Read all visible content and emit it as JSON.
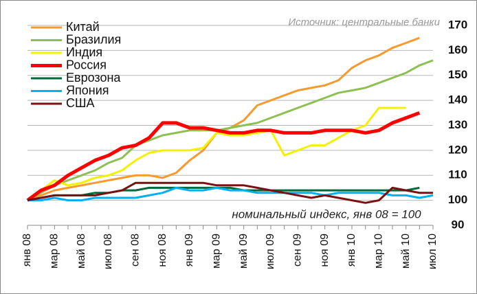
{
  "chart_data": {
    "type": "line",
    "source": "Источник: центральные банки",
    "annotation": "номинальный индекс, янв 08 = 100",
    "categories": [
      "янв 08",
      null,
      "мар 08",
      null,
      "май 08",
      null,
      "июл 08",
      null,
      "сен 08",
      null,
      "ноя 08",
      null,
      "янв 09",
      null,
      "мар 09",
      null,
      "май 09",
      null,
      "июл 09",
      null,
      "сен 09",
      null,
      "ноя 09",
      null,
      "янв 10",
      null,
      "мар 10",
      null,
      "май 10",
      null,
      "июл 10"
    ],
    "ylim": [
      90,
      170
    ],
    "yticks": [
      90,
      100,
      110,
      120,
      130,
      140,
      150,
      160,
      170
    ],
    "grid": true,
    "y_axis_side": "right",
    "legend": "upper left",
    "series": [
      {
        "name": "Китай",
        "color": "#f79a2e",
        "values": [
          100,
          102,
          104,
          105,
          106,
          107,
          108,
          109,
          110,
          110,
          109,
          111,
          116,
          120,
          127,
          129,
          132,
          138,
          140,
          142,
          144,
          145,
          146,
          148,
          153,
          156,
          158,
          161,
          163,
          165,
          null
        ]
      },
      {
        "name": "Бразилия",
        "color": "#8cc152",
        "values": [
          100,
          103,
          106,
          108,
          110,
          112,
          115,
          117,
          122,
          124,
          126,
          127,
          128,
          128,
          128,
          129,
          130,
          131,
          133,
          135,
          137,
          139,
          141,
          143,
          144,
          145,
          147,
          149,
          151,
          154,
          156
        ]
      },
      {
        "name": "Индия",
        "color": "#f2f200",
        "values": [
          100,
          104,
          108,
          106,
          107,
          109,
          110,
          112,
          116,
          119,
          120,
          120,
          120,
          121,
          127,
          126,
          126,
          127,
          128,
          118,
          120,
          122,
          122,
          125,
          128,
          130,
          137,
          137,
          137,
          null,
          null
        ]
      },
      {
        "name": "Россия",
        "color": "#ff0000",
        "values": [
          100,
          104,
          106,
          110,
          113,
          116,
          118,
          121,
          122,
          125,
          131,
          131,
          129,
          129,
          128,
          127,
          127,
          128,
          128,
          127,
          127,
          127,
          128,
          128,
          128,
          127,
          128,
          131,
          133,
          135,
          null
        ]
      },
      {
        "name": "Еврозона",
        "color": "#006a3a",
        "values": [
          100,
          101,
          102,
          102,
          102,
          103,
          103,
          104,
          104,
          105,
          105,
          105,
          105,
          105,
          105,
          105,
          104,
          104,
          104,
          104,
          104,
          104,
          104,
          104,
          104,
          104,
          104,
          104,
          104,
          105,
          null
        ]
      },
      {
        "name": "Япония",
        "color": "#00b0f0",
        "values": [
          100,
          100,
          101,
          100,
          100,
          101,
          101,
          101,
          101,
          102,
          103,
          105,
          104,
          104,
          105,
          104,
          104,
          103,
          103,
          103,
          103,
          103,
          102,
          103,
          103,
          103,
          103,
          102,
          102,
          101,
          102
        ]
      },
      {
        "name": "США",
        "color": "#7b1010",
        "values": [
          100,
          101,
          102,
          102,
          102,
          102,
          103,
          104,
          107,
          107,
          107,
          107,
          107,
          107,
          106,
          106,
          106,
          105,
          104,
          103,
          102,
          101,
          102,
          101,
          100,
          99,
          100,
          105,
          104,
          103,
          103
        ]
      }
    ]
  }
}
